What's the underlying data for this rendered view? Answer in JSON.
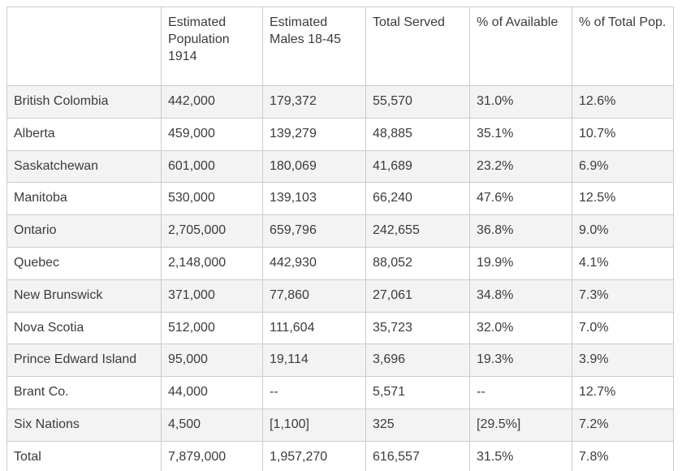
{
  "theme": {
    "page-bg": "#ffffff",
    "border-color": "#cccccc",
    "stripe-color": "#f3f3f3",
    "text-color": "#3b3b3b"
  },
  "table": {
    "columns": [
      "",
      "Estimated Population 1914",
      "Estimated Males 18-45",
      "Total Served",
      "% of Available",
      "% of Total Pop."
    ],
    "rows": [
      {
        "label": "British Colombia",
        "values": [
          "442,000",
          "179,372",
          "55,570",
          "31.0%",
          "12.6%"
        ]
      },
      {
        "label": "Alberta",
        "values": [
          "459,000",
          "139,279",
          "48,885",
          "35.1%",
          "10.7%"
        ]
      },
      {
        "label": "Saskatchewan",
        "values": [
          "601,000",
          "180,069",
          "41,689",
          "23.2%",
          "6.9%"
        ]
      },
      {
        "label": "Manitoba",
        "values": [
          "530,000",
          "139,103",
          "66,240",
          "47.6%",
          "12.5%"
        ]
      },
      {
        "label": "Ontario",
        "values": [
          "2,705,000",
          "659,796",
          "242,655",
          "36.8%",
          "9.0%"
        ]
      },
      {
        "label": "Quebec",
        "values": [
          "2,148,000",
          "442,930",
          "88,052",
          "19.9%",
          "4.1%"
        ]
      },
      {
        "label": "New Brunswick",
        "values": [
          "371,000",
          "77,860",
          "27,061",
          "34.8%",
          "7.3%"
        ]
      },
      {
        "label": "Nova Scotia",
        "values": [
          "512,000",
          "111,604",
          "35,723",
          "32.0%",
          "7.0%"
        ]
      },
      {
        "label": "Prince Edward Island",
        "values": [
          "95,000",
          "19,114",
          "3,696",
          "19.3%",
          "3.9%"
        ]
      },
      {
        "label": "Brant Co.",
        "values": [
          "44,000",
          "--",
          "5,571",
          "--",
          "12.7%"
        ]
      },
      {
        "label": "Six Nations",
        "values": [
          "4,500",
          "[1,100]",
          "325",
          "[29.5%]",
          "7.2%"
        ]
      },
      {
        "label": "Total",
        "values": [
          "7,879,000",
          "1,957,270",
          "616,557",
          "31.5%",
          "7.8%"
        ]
      }
    ]
  }
}
